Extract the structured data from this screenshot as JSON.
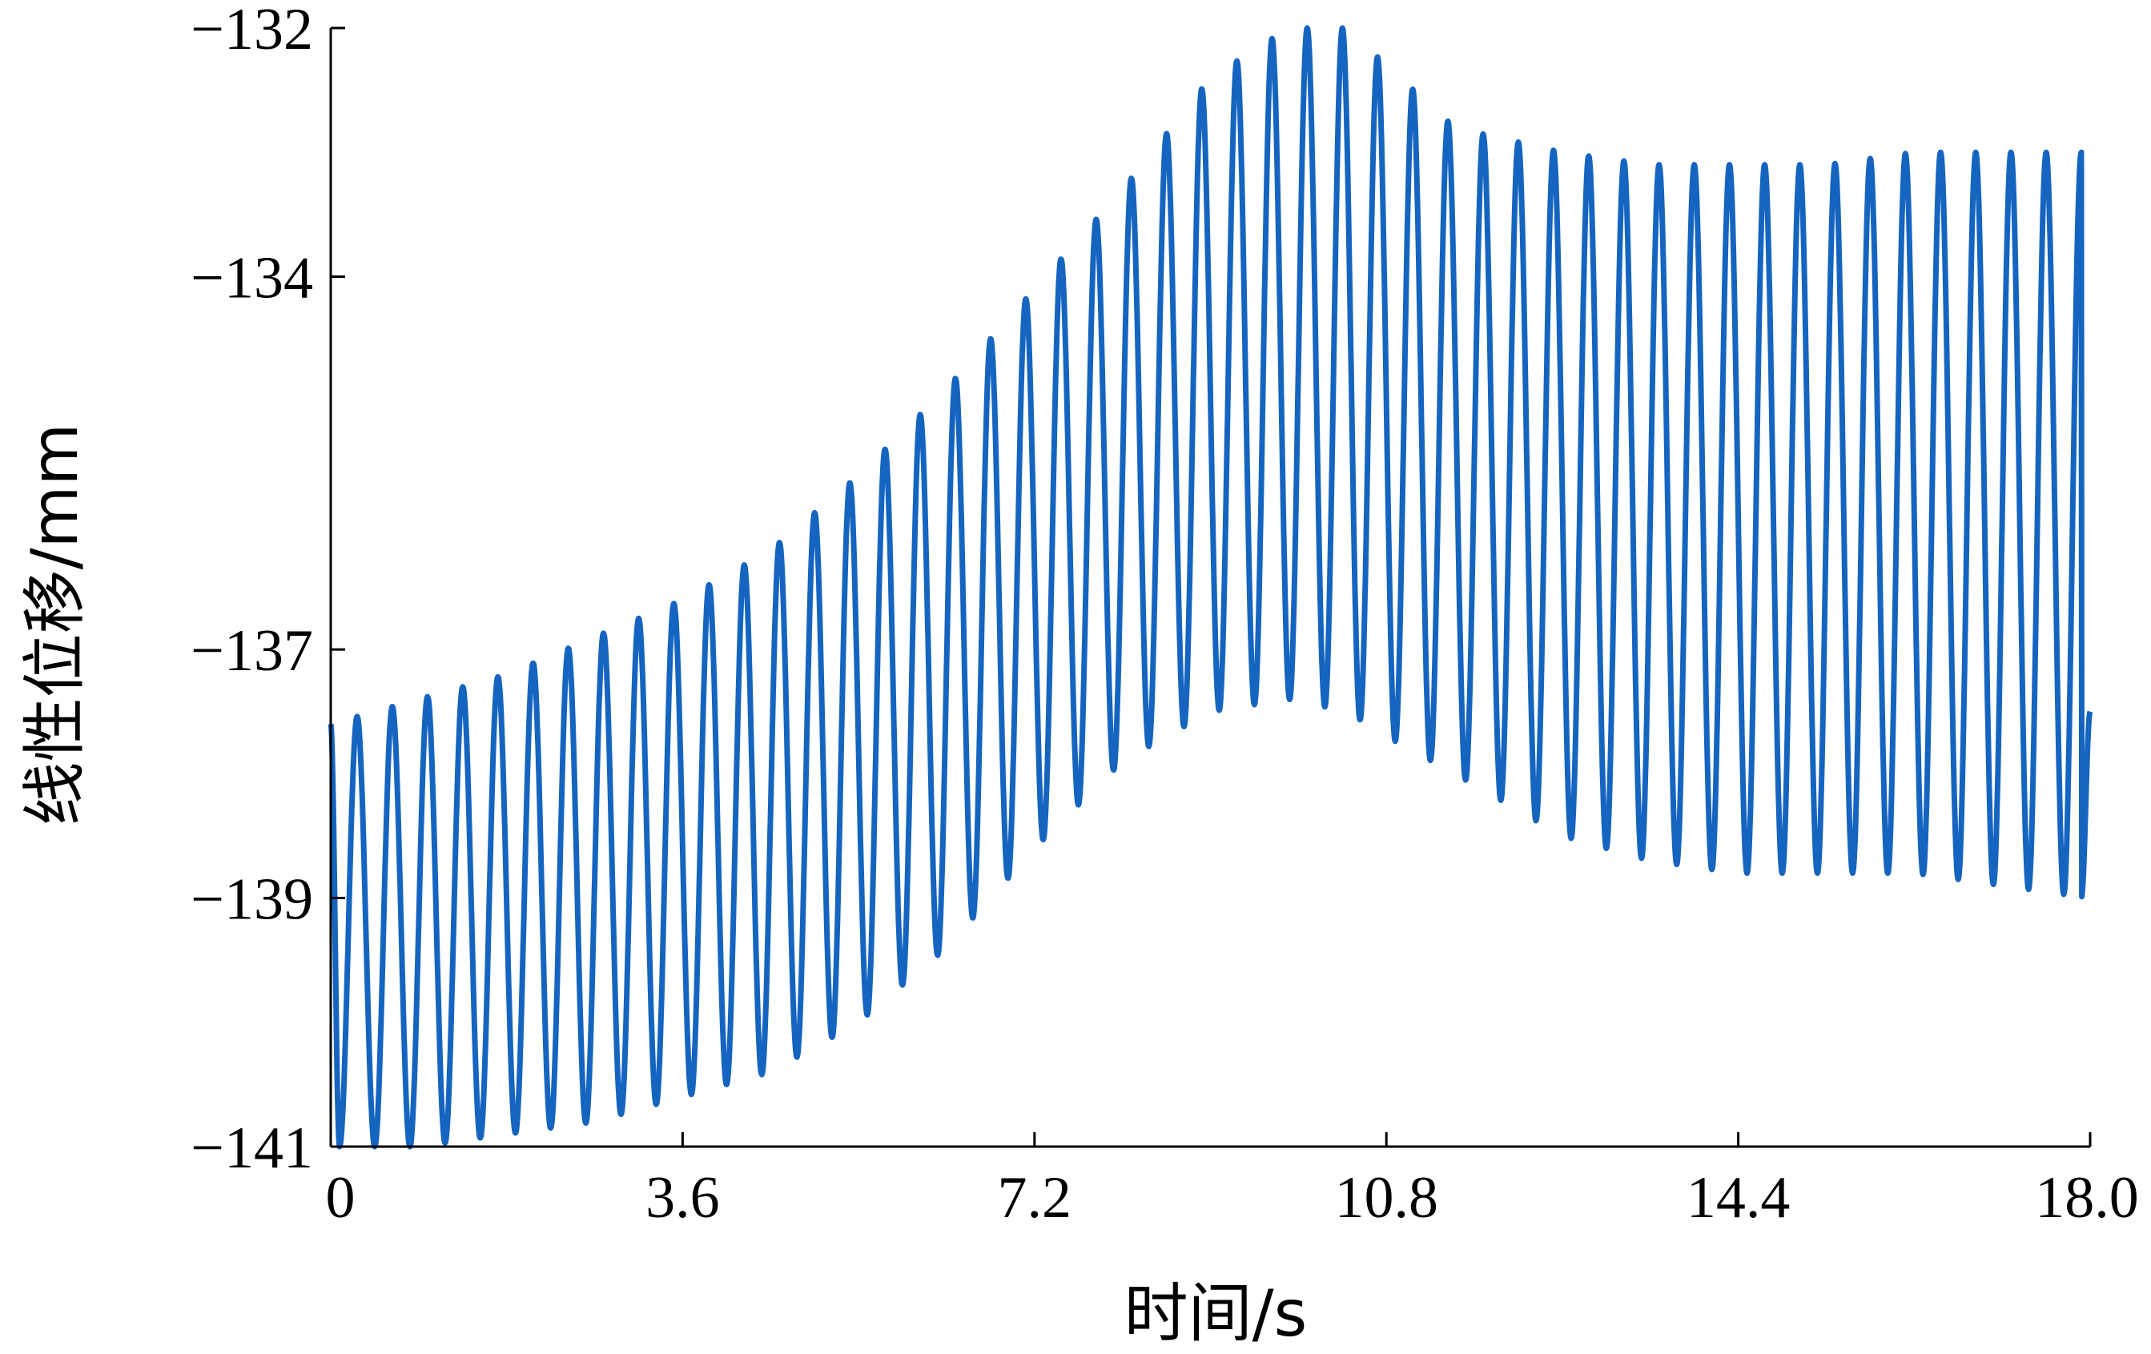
{
  "chart_data": {
    "type": "line",
    "title": "",
    "xlabel": "时间/s",
    "ylabel": "线性位移/mm",
    "xlim": [
      0,
      18.0
    ],
    "ylim": [
      -141,
      -132
    ],
    "x_ticks": [
      0,
      3.6,
      7.2,
      10.8,
      14.4,
      18.0
    ],
    "x_tick_labels": [
      "0",
      "3.6",
      "7.2",
      "10.8",
      "14.4",
      "18.0"
    ],
    "y_ticks": [
      -132,
      -134,
      -137,
      -139,
      -141
    ],
    "y_tick_labels": [
      "−132",
      "−134",
      "−137",
      "−139",
      "−141"
    ],
    "grid": false,
    "legend": "none",
    "series": [
      {
        "color": "#1565c0",
        "oscillation_period_s": 0.36,
        "start": {
          "x": 0,
          "y": -137.6
        },
        "end": {
          "x": 18.0,
          "y": -137.5
        },
        "envelope_x": [
          0,
          0.9,
          1.8,
          2.7,
          3.6,
          4.5,
          5.4,
          6.3,
          7.2,
          8.1,
          9.0,
          9.8,
          10.4,
          10.8,
          11.5,
          12.6,
          13.5,
          14.4,
          15.3,
          16.2,
          17.1,
          18.0
        ],
        "upper_envelope": [
          -137.6,
          -137.4,
          -137.2,
          -136.9,
          -136.6,
          -136.2,
          -135.6,
          -134.9,
          -134.1,
          -133.3,
          -132.4,
          -132.0,
          -132.0,
          -132.3,
          -132.8,
          -133.0,
          -133.1,
          -133.1,
          -133.1,
          -133.0,
          -133.0,
          -133.0
        ],
        "lower_envelope": [
          -141.0,
          -141.0,
          -140.9,
          -140.8,
          -140.6,
          -140.4,
          -140.0,
          -139.4,
          -138.6,
          -137.9,
          -137.5,
          -137.4,
          -137.5,
          -137.7,
          -138.0,
          -138.5,
          -138.7,
          -138.8,
          -138.8,
          -138.8,
          -138.9,
          -139.0
        ]
      }
    ]
  }
}
